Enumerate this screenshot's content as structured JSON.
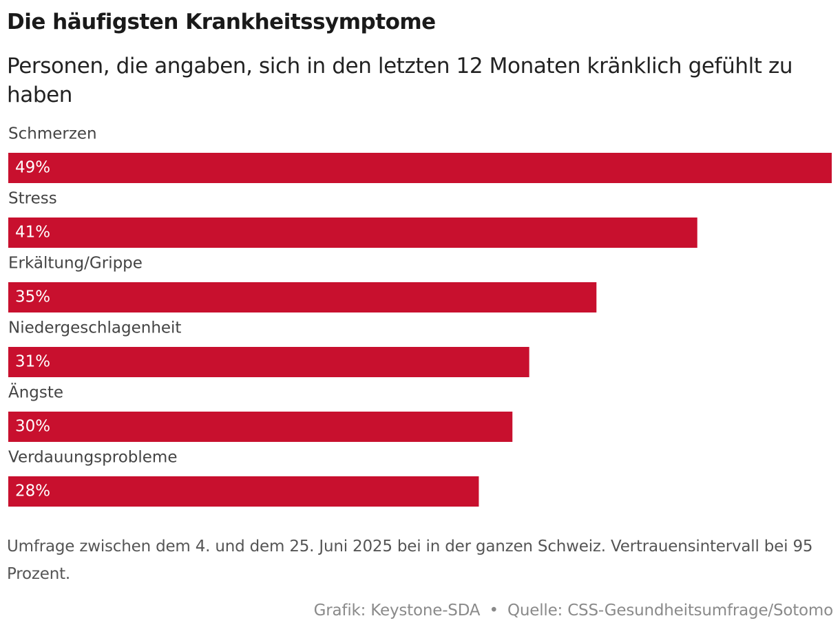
{
  "title": "Die häufigsten Krankheitssymptome",
  "subtitle": "Personen, die angaben, sich in den letzten 12 Monaten kränklich gefühlt zu haben",
  "colors": {
    "bar": "#c8102e",
    "bar_text": "#ffffff",
    "label": "#444444"
  },
  "chart_data": {
    "type": "bar",
    "orientation": "horizontal",
    "categories": [
      "Schmerzen",
      "Stress",
      "Erkältung/Grippe",
      "Niedergeschlagenheit",
      "Ängste",
      "Verdauungsprobleme"
    ],
    "values": [
      49,
      41,
      35,
      31,
      30,
      28
    ],
    "value_labels": [
      "49%",
      "41%",
      "35%",
      "31%",
      "30%",
      "28%"
    ],
    "unit": "%",
    "xlim": [
      0,
      49
    ],
    "grid": false,
    "legend": "none"
  },
  "footer": {
    "note": "Umfrage zwischen dem 4. und dem 25. Juni 2025 bei in der ganzen Schweiz. Vertrauensintervall bei 95 Prozent.",
    "credit_graphic": "Grafik: Keystone-SDA",
    "credit_separator": "•",
    "credit_source": "Quelle: CSS-Gesundheitsumfrage/Sotomo"
  }
}
